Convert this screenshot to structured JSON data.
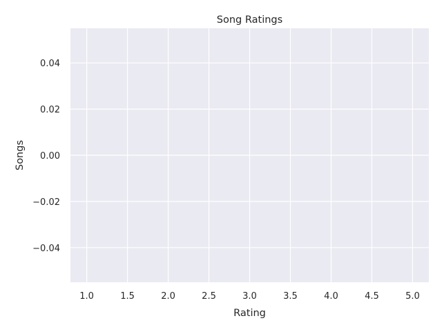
{
  "chart_data": {
    "type": "scatter",
    "title": "Song Ratings",
    "xlabel": "Rating",
    "ylabel": "Songs",
    "xlim": [
      0.8,
      5.2
    ],
    "ylim": [
      -0.055,
      0.055
    ],
    "x_ticks": [
      1.0,
      1.5,
      2.0,
      2.5,
      3.0,
      3.5,
      4.0,
      4.5,
      5.0
    ],
    "x_tick_labels": [
      "1.0",
      "1.5",
      "2.0",
      "2.5",
      "3.0",
      "3.5",
      "4.0",
      "4.5",
      "5.0"
    ],
    "y_ticks": [
      0.04,
      0.02,
      0.0,
      -0.02,
      -0.04
    ],
    "y_tick_labels": [
      "0.04",
      "0.02",
      "0.00",
      "−0.02",
      "−0.04"
    ],
    "grid": true,
    "series": [],
    "colors": {
      "plot_background": "#eaeaf2",
      "grid": "#ffffff",
      "text": "#262626"
    }
  }
}
